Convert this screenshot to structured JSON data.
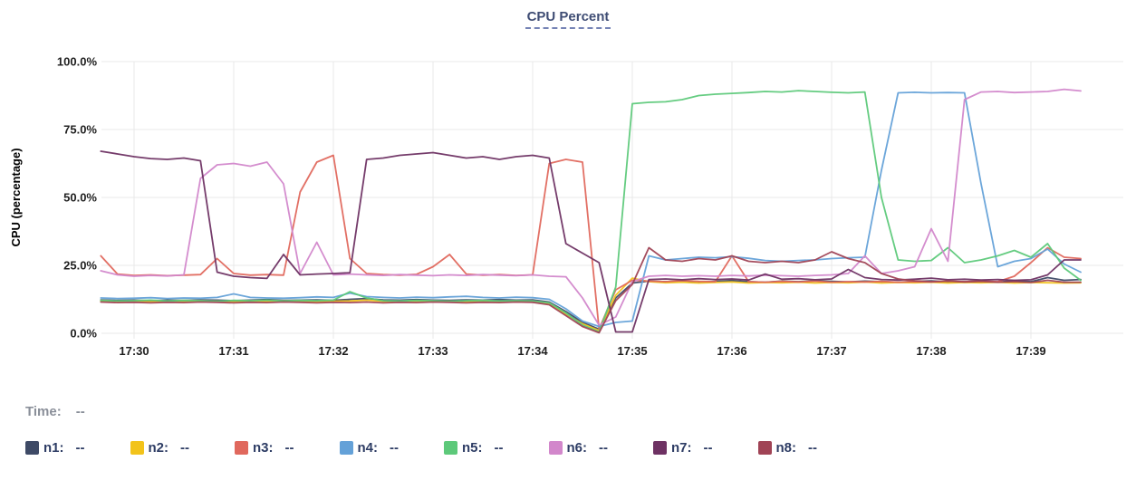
{
  "title": {
    "text": "CPU Percent"
  },
  "readout": {
    "time_label": "Time:",
    "time_value": "--"
  },
  "legend": {
    "value_placeholder": "--"
  },
  "colors": {
    "title_text": "#3f4d74",
    "title_underline": "#7583b5",
    "grid": "#e8e8e8",
    "axis_text": "#1f1f1f",
    "legend_text": "#2d3c64",
    "readout_text": "#8a8f99"
  },
  "chart_data": {
    "type": "line",
    "title": "CPU Percent",
    "xlabel": "",
    "ylabel": "CPU (percentage)",
    "x_unit": "minutes relative to 17:30",
    "x_start": -0.3333,
    "x_step": 0.16667,
    "xlim": [
      -0.45,
      9.95
    ],
    "ylim": [
      0,
      100
    ],
    "grid": true,
    "legend_position": "bottom",
    "x_ticks": [
      {
        "value": 0,
        "label": "17:30"
      },
      {
        "value": 1,
        "label": "17:31"
      },
      {
        "value": 2,
        "label": "17:32"
      },
      {
        "value": 3,
        "label": "17:33"
      },
      {
        "value": 4,
        "label": "17:34"
      },
      {
        "value": 5,
        "label": "17:35"
      },
      {
        "value": 6,
        "label": "17:36"
      },
      {
        "value": 7,
        "label": "17:37"
      },
      {
        "value": 8,
        "label": "17:38"
      },
      {
        "value": 9,
        "label": "17:39"
      }
    ],
    "y_ticks": [
      {
        "value": 0,
        "label": "0.0%"
      },
      {
        "value": 25,
        "label": "25.0%"
      },
      {
        "value": 50,
        "label": "50.0%"
      },
      {
        "value": 75,
        "label": "75.0%"
      },
      {
        "value": 100,
        "label": "100.0%"
      }
    ],
    "series": [
      {
        "name": "n1",
        "label": "n1:",
        "color": "#3e4a66",
        "values": [
          12.3,
          12.1,
          12.2,
          12.0,
          12.2,
          12.1,
          12.3,
          12.2,
          12.0,
          12.2,
          12.4,
          12.1,
          12.2,
          12.3,
          12.1,
          12.5,
          12.8,
          12.3,
          12.2,
          12.4,
          12.2,
          12.1,
          12.3,
          12.2,
          12.4,
          12.2,
          12.3,
          11.5,
          8.0,
          4.0,
          1.5,
          13.0,
          18.5,
          19.2,
          19.0,
          19.3,
          18.8,
          19.1,
          19.4,
          19.0,
          18.8,
          19.2,
          19.0,
          19.3,
          19.1,
          18.9,
          19.2,
          19.0,
          18.8,
          19.1,
          19.3,
          18.9,
          19.0,
          19.2,
          18.8,
          19.4,
          19.0,
          20.5,
          19.5,
          19.8
        ]
      },
      {
        "name": "n2",
        "label": "n2:",
        "color": "#f2c31b",
        "values": [
          11.9,
          11.7,
          11.8,
          11.6,
          11.8,
          11.7,
          11.9,
          11.8,
          11.6,
          11.8,
          11.7,
          11.9,
          11.8,
          11.6,
          11.8,
          11.9,
          12.2,
          11.8,
          11.7,
          11.9,
          11.7,
          11.8,
          11.6,
          11.9,
          11.8,
          11.7,
          11.8,
          11.0,
          7.0,
          3.5,
          1.0,
          14.0,
          20.3,
          19.0,
          18.6,
          18.8,
          18.5,
          18.7,
          18.9,
          18.5,
          18.7,
          18.6,
          18.8,
          18.5,
          18.7,
          18.6,
          18.9,
          18.5,
          18.7,
          18.6,
          18.8,
          18.5,
          18.7,
          18.6,
          18.8,
          18.5,
          18.7,
          18.6,
          18.5,
          18.6
        ]
      },
      {
        "name": "n3",
        "label": "n3:",
        "color": "#e0685d",
        "values": [
          28.5,
          21.8,
          21.3,
          21.5,
          21.2,
          21.4,
          21.6,
          27.5,
          22.0,
          21.4,
          21.6,
          21.4,
          52.0,
          63.0,
          65.5,
          27.5,
          22.0,
          21.6,
          21.4,
          21.7,
          24.5,
          29.0,
          21.8,
          21.4,
          21.6,
          21.3,
          21.5,
          62.5,
          64.0,
          63.0,
          1.5,
          16.0,
          19.5,
          19.2,
          19.0,
          19.4,
          19.1,
          19.0,
          28.5,
          19.0,
          18.8,
          19.1,
          18.9,
          19.2,
          18.8,
          19.0,
          18.9,
          19.1,
          18.8,
          19.0,
          18.9,
          19.2,
          19.0,
          19.3,
          19.0,
          21.0,
          26.0,
          31.5,
          28.0,
          27.5
        ]
      },
      {
        "name": "n4",
        "label": "n4:",
        "color": "#64a1d8",
        "values": [
          13.0,
          12.8,
          12.9,
          13.1,
          12.8,
          13.0,
          12.9,
          13.2,
          14.5,
          13.2,
          13.0,
          12.9,
          13.1,
          13.4,
          13.2,
          14.8,
          13.5,
          13.2,
          13.0,
          13.3,
          13.1,
          13.4,
          13.6,
          13.2,
          13.0,
          13.3,
          13.1,
          12.5,
          9.0,
          4.5,
          2.5,
          4.0,
          4.5,
          28.5,
          27.0,
          27.5,
          28.0,
          27.8,
          28.2,
          27.6,
          26.8,
          26.5,
          26.8,
          27.0,
          27.5,
          27.8,
          28.0,
          60.0,
          88.5,
          88.7,
          88.5,
          88.6,
          88.5,
          55.0,
          24.5,
          26.5,
          27.5,
          31.0,
          25.5,
          22.5
        ]
      },
      {
        "name": "n5",
        "label": "n5:",
        "color": "#5dc97a",
        "values": [
          12.1,
          11.9,
          12.0,
          12.2,
          11.9,
          12.1,
          12.0,
          11.8,
          12.1,
          12.0,
          12.2,
          11.9,
          12.1,
          12.0,
          12.2,
          15.3,
          13.0,
          12.0,
          11.9,
          12.1,
          12.0,
          11.8,
          12.0,
          12.1,
          11.9,
          12.0,
          11.9,
          11.2,
          7.5,
          3.0,
          0.5,
          17.0,
          84.5,
          85.0,
          85.2,
          86.0,
          87.5,
          88.0,
          88.3,
          88.6,
          89.0,
          88.8,
          89.3,
          89.0,
          88.7,
          88.5,
          88.8,
          50.0,
          27.0,
          26.5,
          26.8,
          31.5,
          26.0,
          27.0,
          28.5,
          30.5,
          28.0,
          33.0,
          24.0,
          19.5
        ]
      },
      {
        "name": "n6",
        "label": "n6:",
        "color": "#d287cb",
        "values": [
          23.0,
          21.5,
          21.0,
          21.3,
          21.1,
          21.5,
          57.0,
          62.0,
          62.5,
          61.5,
          63.0,
          55.0,
          22.0,
          33.5,
          21.5,
          21.8,
          21.5,
          21.3,
          21.6,
          21.4,
          21.2,
          21.5,
          21.3,
          21.6,
          21.4,
          21.2,
          21.5,
          21.0,
          20.8,
          13.0,
          3.0,
          6.0,
          19.0,
          21.0,
          21.3,
          21.0,
          21.2,
          21.0,
          21.3,
          21.1,
          21.4,
          21.2,
          21.0,
          21.3,
          21.5,
          22.0,
          28.5,
          22.0,
          23.0,
          24.5,
          38.5,
          26.5,
          86.0,
          88.8,
          89.0,
          88.6,
          88.8,
          89.0,
          89.8,
          89.2
        ]
      },
      {
        "name": "n7",
        "label": "n7:",
        "color": "#6e3263",
        "values": [
          67.0,
          66.0,
          65.0,
          64.3,
          64.0,
          64.5,
          63.5,
          22.5,
          21.0,
          20.5,
          20.2,
          29.0,
          21.5,
          21.8,
          22.0,
          22.3,
          64.0,
          64.5,
          65.5,
          66.0,
          66.5,
          65.5,
          64.5,
          65.0,
          64.0,
          65.0,
          65.5,
          64.5,
          33.0,
          29.5,
          26.0,
          0.5,
          0.5,
          19.8,
          20.0,
          19.7,
          20.1,
          19.8,
          20.0,
          19.6,
          21.8,
          19.9,
          20.1,
          19.7,
          20.0,
          23.5,
          20.5,
          19.8,
          19.6,
          19.9,
          20.3,
          19.7,
          19.9,
          19.6,
          19.8,
          19.5,
          19.7,
          21.5,
          27.0,
          27.0
        ]
      },
      {
        "name": "n8",
        "label": "n8:",
        "color": "#a04355",
        "values": [
          11.5,
          11.3,
          11.4,
          11.2,
          11.4,
          11.3,
          11.5,
          11.4,
          11.2,
          11.4,
          11.3,
          11.5,
          11.4,
          11.2,
          11.4,
          11.3,
          11.5,
          11.2,
          11.4,
          11.3,
          11.5,
          11.4,
          11.2,
          11.4,
          11.3,
          11.5,
          11.4,
          10.5,
          6.5,
          2.5,
          0.2,
          12.0,
          18.0,
          31.5,
          27.0,
          26.5,
          27.5,
          27.0,
          28.5,
          26.5,
          26.0,
          26.5,
          26.0,
          27.0,
          30.0,
          27.5,
          26.0,
          22.0,
          20.0,
          19.3,
          19.0,
          19.2,
          18.9,
          19.1,
          18.8,
          19.0,
          18.7,
          19.5,
          18.8,
          18.8
        ]
      }
    ]
  }
}
